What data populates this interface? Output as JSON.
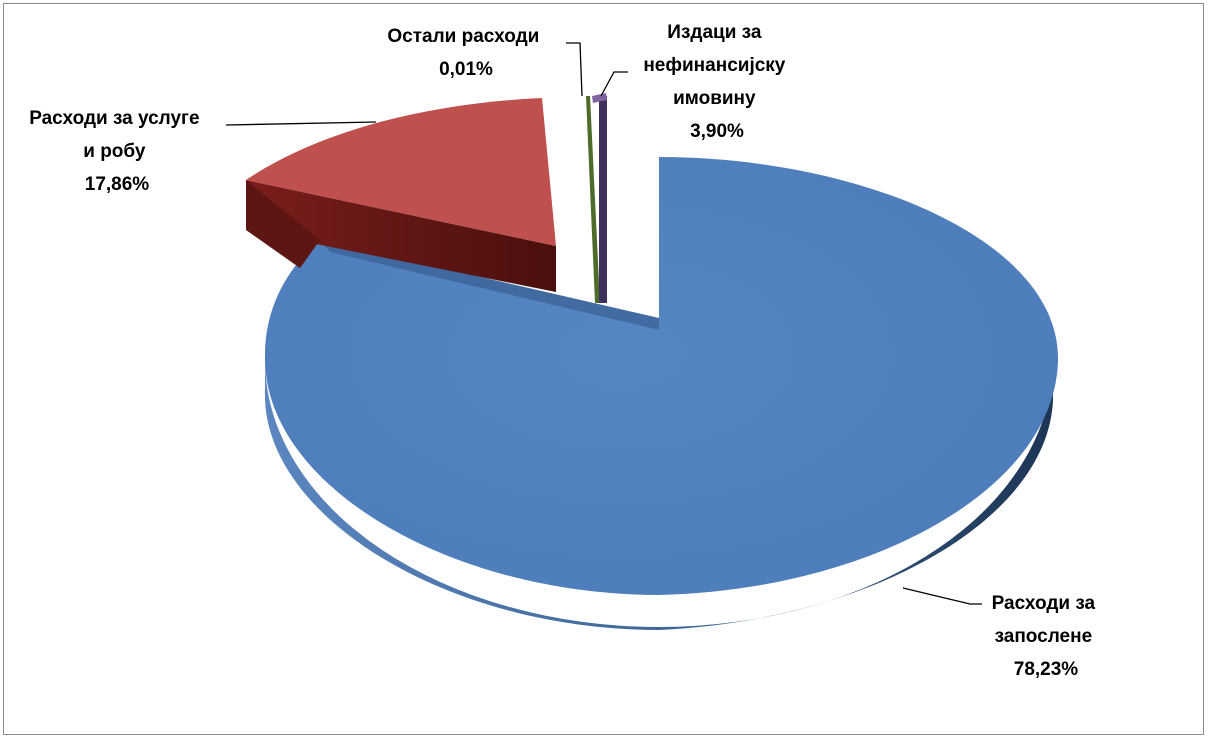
{
  "chart_data": {
    "type": "pie",
    "style": "3d-exploded",
    "slices": [
      {
        "label_lines": [
          "Расходи за",
          "запослене"
        ],
        "value_label": "78,23%",
        "value": 78.23,
        "color": "#4f81bd"
      },
      {
        "label_lines": [
          "Расходи за услуге",
          "и робу"
        ],
        "value_label": "17,86%",
        "value": 17.86,
        "color": "#c0504d"
      },
      {
        "label_lines": [
          "Остали расходи"
        ],
        "value_label": "0,01%",
        "value": 0.01,
        "color": "#9bbb59"
      },
      {
        "label_lines": [
          "Издаци за",
          "нефинансијску",
          "имовину"
        ],
        "value_label": "3,90%",
        "value": 3.9,
        "color": "#8064a2"
      }
    ]
  }
}
